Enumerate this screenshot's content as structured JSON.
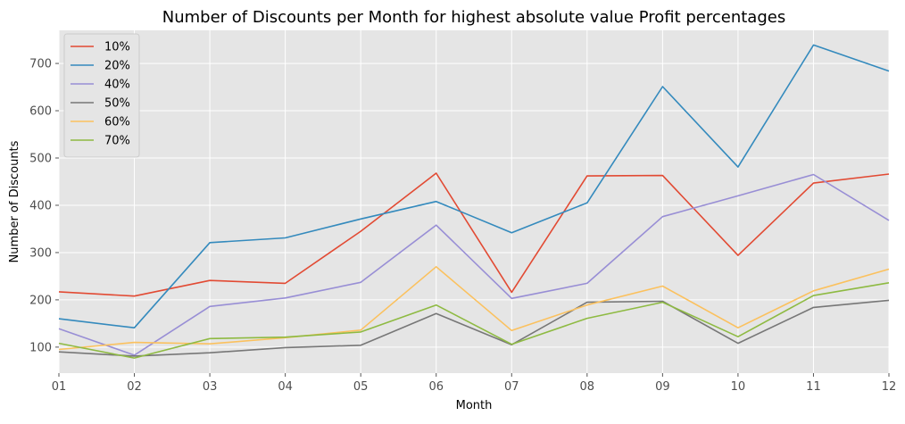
{
  "chart_data": {
    "type": "line",
    "title": "Number of Discounts per Month for highest absolute value Profit percentages",
    "xlabel": "Month",
    "ylabel": "Number of Discounts",
    "categories": [
      "01",
      "02",
      "03",
      "04",
      "05",
      "06",
      "07",
      "08",
      "09",
      "10",
      "11",
      "12"
    ],
    "ylim": [
      45,
      770
    ],
    "yticks": [
      100,
      200,
      300,
      400,
      500,
      600,
      700
    ],
    "grid": true,
    "legend_position": "top-left",
    "series": [
      {
        "name": "10%",
        "color": "#E24A33",
        "values": [
          217,
          208,
          241,
          235,
          345,
          468,
          216,
          462,
          463,
          294,
          447,
          466
        ]
      },
      {
        "name": "20%",
        "color": "#348ABD",
        "values": [
          160,
          141,
          321,
          331,
          371,
          408,
          342,
          405,
          651,
          481,
          739,
          684
        ]
      },
      {
        "name": "40%",
        "color": "#988ED5",
        "values": [
          139,
          83,
          186,
          204,
          237,
          358,
          203,
          235,
          376,
          420,
          465,
          368
        ]
      },
      {
        "name": "50%",
        "color": "#777777",
        "values": [
          90,
          81,
          88,
          99,
          104,
          171,
          105,
          195,
          197,
          108,
          184,
          199
        ]
      },
      {
        "name": "60%",
        "color": "#FBC15E",
        "values": [
          95,
          110,
          107,
          120,
          136,
          270,
          135,
          189,
          229,
          141,
          219,
          265
        ]
      },
      {
        "name": "70%",
        "color": "#8EBA42",
        "values": [
          108,
          77,
          118,
          121,
          132,
          189,
          106,
          161,
          195,
          122,
          209,
          236
        ]
      }
    ]
  }
}
